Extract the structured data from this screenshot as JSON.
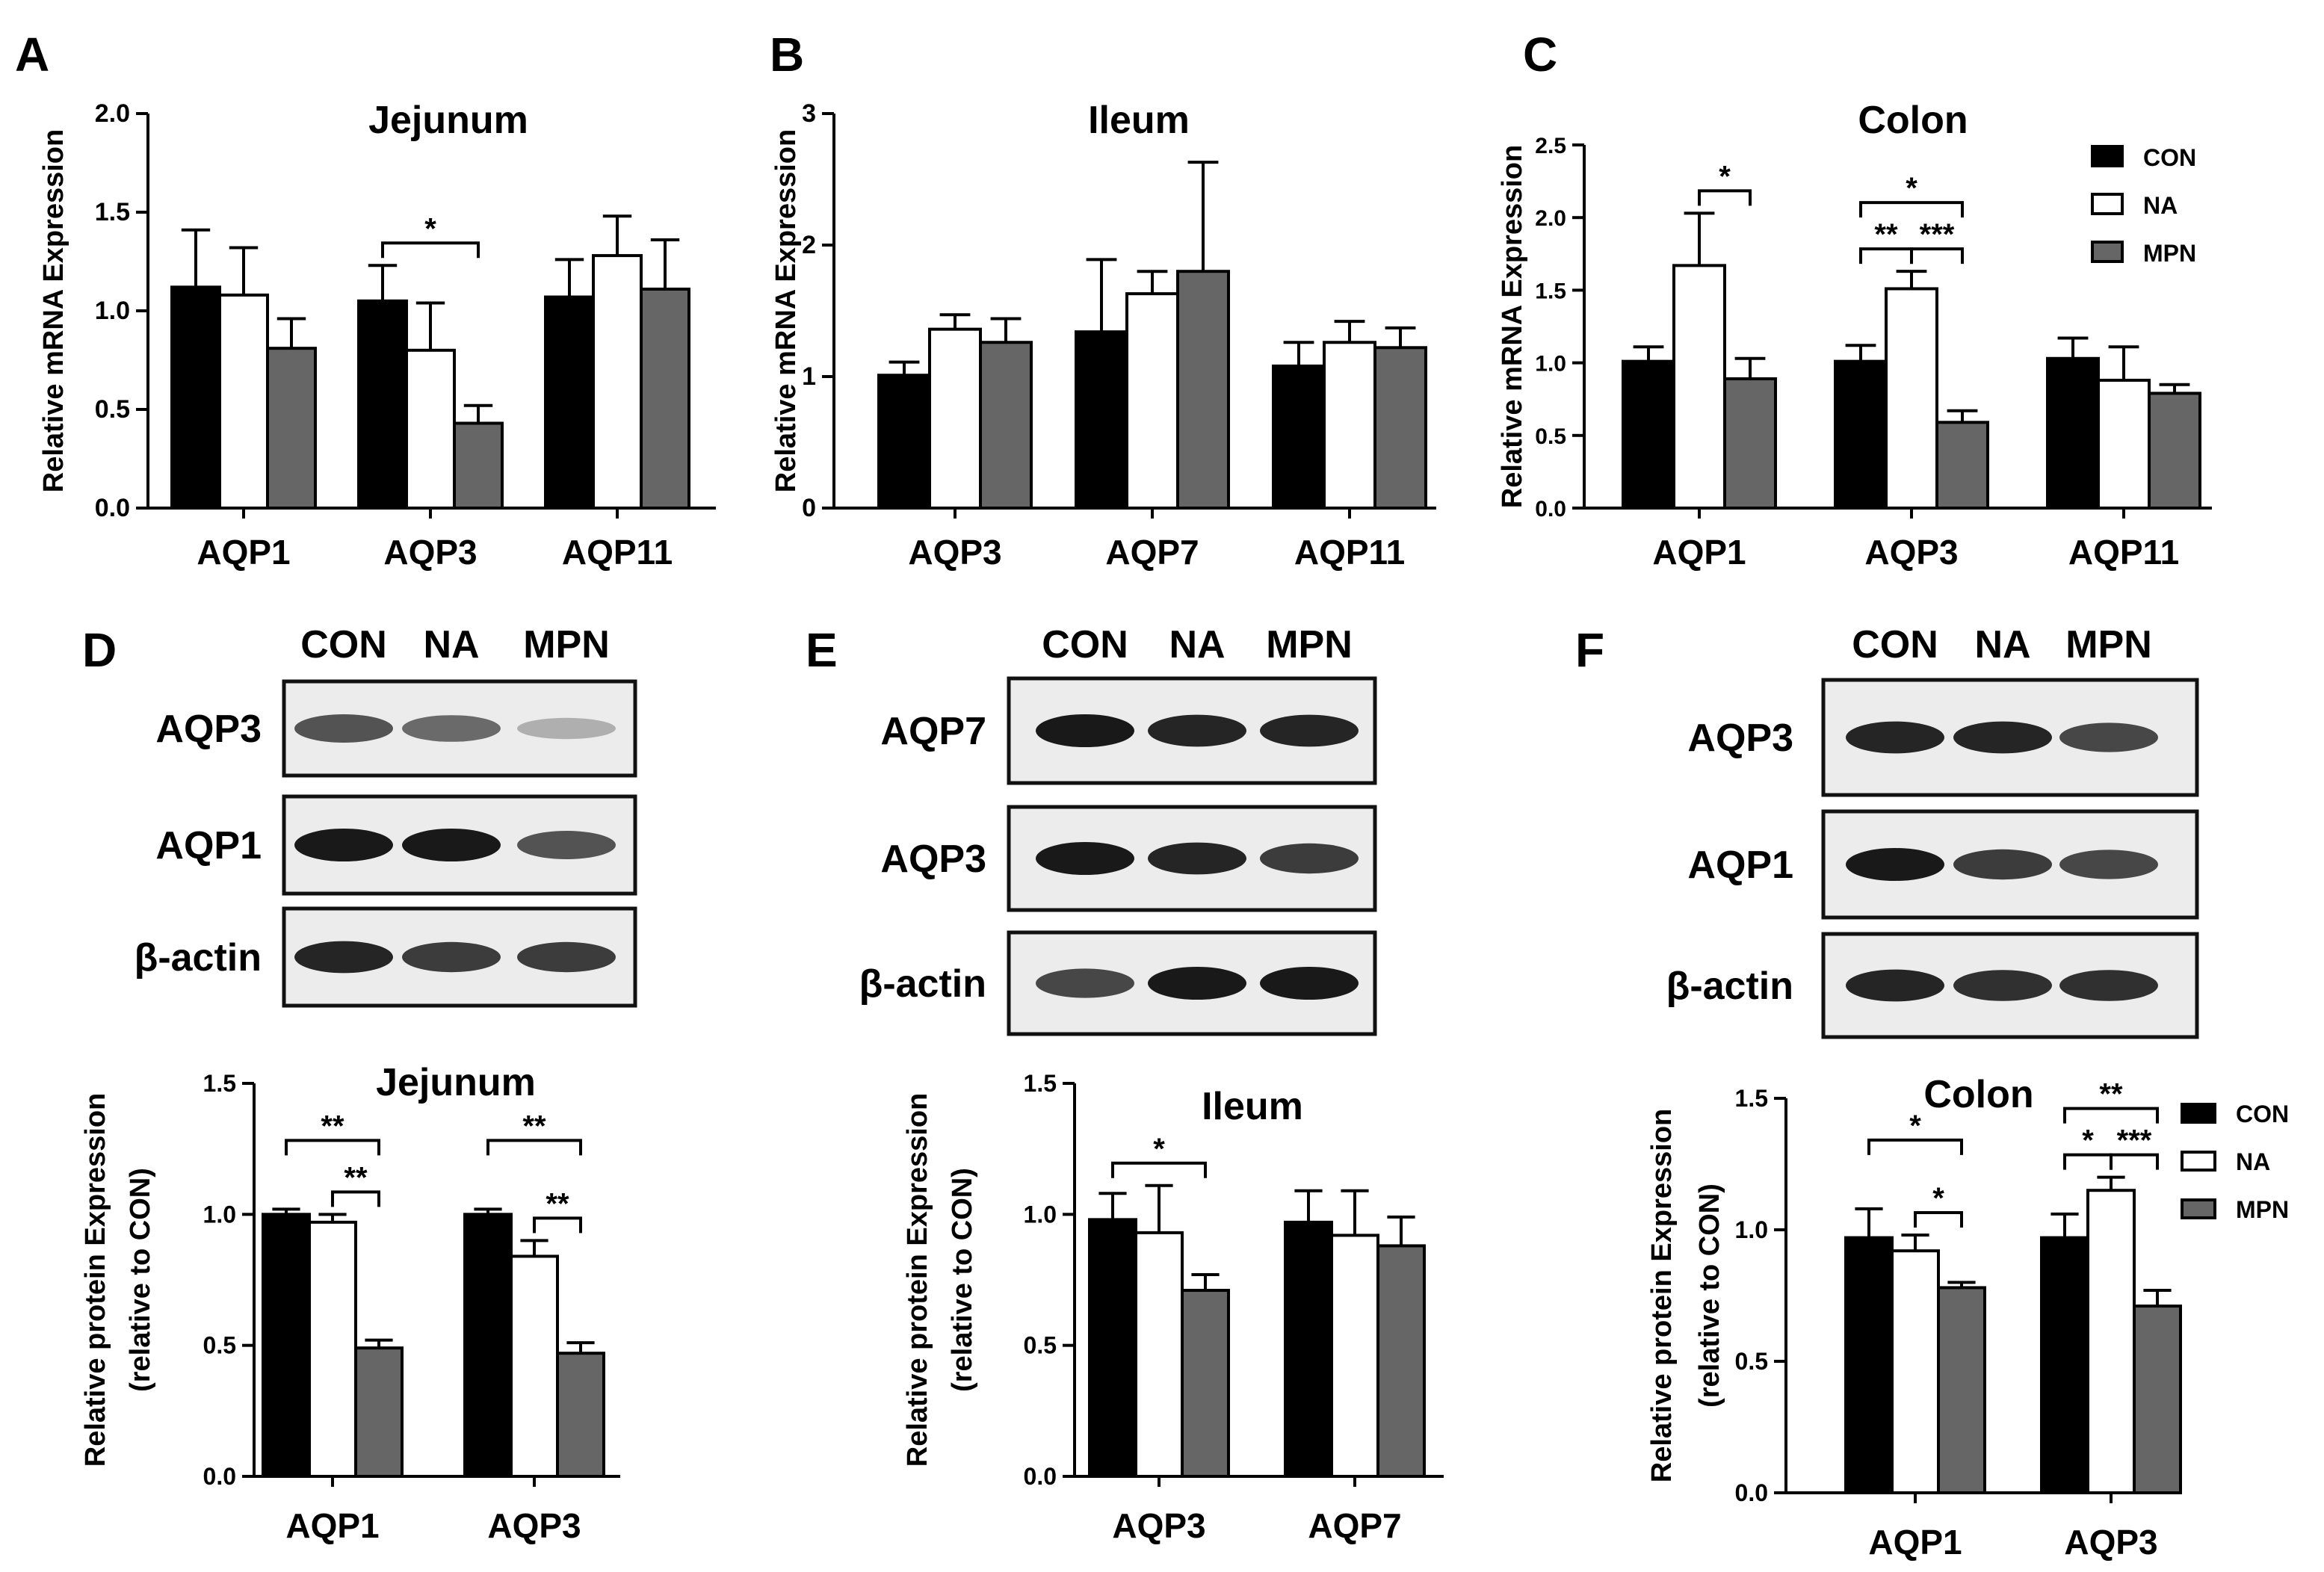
{
  "legend": {
    "groups": [
      "CON",
      "NA",
      "MPN"
    ]
  },
  "colors": {
    "CON": "#000000",
    "NA": "#ffffff",
    "MPN": "#666666",
    "axis": "#000000"
  },
  "panels": [
    {
      "letter": "A",
      "title": "Jejunum",
      "ylabel": "Relative mRNA Expression"
    },
    {
      "letter": "B",
      "title": "Ileum",
      "ylabel": "Relative mRNA Expression"
    },
    {
      "letter": "C",
      "title": "Colon",
      "ylabel": "Relative mRNA Expression"
    },
    {
      "letter": "D",
      "title": "Jejunum",
      "ylabel": [
        "Relative protein Expression",
        "(relative to CON)"
      ]
    },
    {
      "letter": "E",
      "title": "Ileum",
      "ylabel": [
        "Relative protein Expression",
        "(relative to CON)"
      ]
    },
    {
      "letter": "F",
      "title": "Colon",
      "ylabel": [
        "Relative protein Expression",
        "(relative to CON)"
      ]
    }
  ],
  "blots": [
    {
      "panel": "D",
      "lanes": [
        "CON",
        "NA",
        "MPN"
      ],
      "rows": [
        {
          "label": "AQP3",
          "intensity": [
            0.75,
            0.65,
            0.35
          ]
        },
        {
          "label": "AQP1",
          "intensity": [
            1.0,
            1.0,
            0.75
          ]
        },
        {
          "label": "β-actin",
          "intensity": [
            0.95,
            0.85,
            0.85
          ]
        }
      ]
    },
    {
      "panel": "E",
      "lanes": [
        "CON",
        "NA",
        "MPN"
      ],
      "rows": [
        {
          "label": "AQP7",
          "intensity": [
            1.0,
            0.95,
            0.95
          ]
        },
        {
          "label": "AQP3",
          "intensity": [
            1.0,
            0.95,
            0.85
          ]
        },
        {
          "label": "β-actin",
          "intensity": [
            0.8,
            1.0,
            1.0
          ]
        }
      ]
    },
    {
      "panel": "F",
      "lanes": [
        "CON",
        "NA",
        "MPN"
      ],
      "rows": [
        {
          "label": "AQP3",
          "intensity": [
            0.95,
            0.95,
            0.8
          ]
        },
        {
          "label": "AQP1",
          "intensity": [
            1.0,
            0.85,
            0.8
          ]
        },
        {
          "label": "β-actin",
          "intensity": [
            0.95,
            0.9,
            0.9
          ]
        }
      ]
    }
  ],
  "chart_data": [
    {
      "panel": "A",
      "type": "bar",
      "title": "Jejunum",
      "ylabel": "Relative mRNA Expression",
      "categories": [
        "AQP1",
        "AQP3",
        "AQP11"
      ],
      "ylim": [
        0,
        2.0
      ],
      "yticks": [
        "0.0",
        "0.5",
        "1.0",
        "1.5",
        "2.0"
      ],
      "series": [
        {
          "name": "CON",
          "values": [
            1.12,
            1.05,
            1.07
          ],
          "errors": [
            0.29,
            0.18,
            0.19
          ]
        },
        {
          "name": "NA",
          "values": [
            1.08,
            0.8,
            1.28
          ],
          "errors": [
            0.24,
            0.24,
            0.2
          ]
        },
        {
          "name": "MPN",
          "values": [
            0.81,
            0.43,
            1.11
          ],
          "errors": [
            0.15,
            0.09,
            0.25
          ]
        }
      ],
      "significance": [
        {
          "cat": 1,
          "from": 0,
          "to": 2,
          "label": "*",
          "level": 0
        }
      ]
    },
    {
      "panel": "B",
      "type": "bar",
      "title": "Ileum",
      "ylabel": "Relative mRNA Expression",
      "categories": [
        "AQP3",
        "AQP7",
        "AQP11"
      ],
      "ylim": [
        0,
        3
      ],
      "yticks": [
        "0",
        "1",
        "2",
        "3"
      ],
      "series": [
        {
          "name": "CON",
          "values": [
            1.01,
            1.34,
            1.08
          ],
          "errors": [
            0.1,
            0.55,
            0.18
          ]
        },
        {
          "name": "NA",
          "values": [
            1.36,
            1.63,
            1.26
          ],
          "errors": [
            0.11,
            0.17,
            0.16
          ]
        },
        {
          "name": "MPN",
          "values": [
            1.26,
            1.8,
            1.22
          ],
          "errors": [
            0.18,
            0.83,
            0.15
          ]
        }
      ],
      "significance": []
    },
    {
      "panel": "C",
      "type": "bar",
      "title": "Colon",
      "ylabel": "Relative mRNA Expression",
      "categories": [
        "AQP1",
        "AQP3",
        "AQP11"
      ],
      "ylim": [
        0,
        2.5
      ],
      "yticks": [
        "0.0",
        "0.5",
        "1.0",
        "1.5",
        "2.0",
        "2.5"
      ],
      "series": [
        {
          "name": "CON",
          "values": [
            1.01,
            1.01,
            1.03
          ],
          "errors": [
            0.1,
            0.11,
            0.14
          ]
        },
        {
          "name": "NA",
          "values": [
            1.67,
            1.51,
            0.88
          ],
          "errors": [
            0.36,
            0.12,
            0.23
          ]
        },
        {
          "name": "MPN",
          "values": [
            0.89,
            0.59,
            0.79
          ],
          "errors": [
            0.14,
            0.08,
            0.06
          ]
        }
      ],
      "legend": "top-right",
      "significance": [
        {
          "cat": 0,
          "from": 1,
          "to": 2,
          "label": "*",
          "level": 0
        },
        {
          "cat": 1,
          "from": 0,
          "to": 1,
          "label": "**",
          "level": 0
        },
        {
          "cat": 1,
          "from": 1,
          "to": 2,
          "label": "***",
          "level": 0
        },
        {
          "cat": 1,
          "from": 0,
          "to": 2,
          "label": "*",
          "level": 1
        }
      ]
    },
    {
      "panel": "D",
      "type": "bar",
      "title": "Jejunum",
      "ylabel": [
        "Relative protein Expression",
        "(relative to CON)"
      ],
      "categories": [
        "AQP1",
        "AQP3"
      ],
      "ylim": [
        0,
        1.5
      ],
      "yticks": [
        "0.0",
        "0.5",
        "1.0",
        "1.5"
      ],
      "series": [
        {
          "name": "CON",
          "values": [
            1.0,
            1.0
          ],
          "errors": [
            0.02,
            0.02
          ]
        },
        {
          "name": "NA",
          "values": [
            0.97,
            0.84
          ],
          "errors": [
            0.03,
            0.06
          ]
        },
        {
          "name": "MPN",
          "values": [
            0.49,
            0.47
          ],
          "errors": [
            0.03,
            0.04
          ]
        }
      ],
      "significance": [
        {
          "cat": 0,
          "from": 1,
          "to": 2,
          "label": "**",
          "level": 0
        },
        {
          "cat": 0,
          "from": 0,
          "to": 2,
          "label": "**",
          "level": 1
        },
        {
          "cat": 1,
          "from": 1,
          "to": 2,
          "label": "**",
          "level": 0
        },
        {
          "cat": 1,
          "from": 0,
          "to": 2,
          "label": "**",
          "level": 1
        }
      ]
    },
    {
      "panel": "E",
      "type": "bar",
      "title": "Ileum",
      "ylabel": [
        "Relative protein Expression",
        "(relative to CON)"
      ],
      "categories": [
        "AQP3",
        "AQP7"
      ],
      "ylim": [
        0,
        1.5
      ],
      "yticks": [
        "0.0",
        "0.5",
        "1.0",
        "1.5"
      ],
      "series": [
        {
          "name": "CON",
          "values": [
            0.98,
            0.97
          ],
          "errors": [
            0.1,
            0.12
          ]
        },
        {
          "name": "NA",
          "values": [
            0.93,
            0.92
          ],
          "errors": [
            0.18,
            0.17
          ]
        },
        {
          "name": "MPN",
          "values": [
            0.71,
            0.88
          ],
          "errors": [
            0.06,
            0.11
          ]
        }
      ],
      "significance": [
        {
          "cat": 0,
          "from": 0,
          "to": 2,
          "label": "*",
          "level": 0
        }
      ]
    },
    {
      "panel": "F",
      "type": "bar",
      "title": "Colon",
      "ylabel": [
        "Relative protein Expression",
        "(relative to CON)"
      ],
      "categories": [
        "AQP1",
        "AQP3"
      ],
      "ylim": [
        0,
        1.5
      ],
      "yticks": [
        "0.0",
        "0.5",
        "1.0",
        "1.5"
      ],
      "series": [
        {
          "name": "CON",
          "values": [
            0.97,
            0.97
          ],
          "errors": [
            0.11,
            0.09
          ]
        },
        {
          "name": "NA",
          "values": [
            0.92,
            1.15
          ],
          "errors": [
            0.06,
            0.05
          ]
        },
        {
          "name": "MPN",
          "values": [
            0.78,
            0.71
          ],
          "errors": [
            0.02,
            0.06
          ]
        }
      ],
      "legend": "top-right",
      "significance": [
        {
          "cat": 0,
          "from": 1,
          "to": 2,
          "label": "*",
          "level": 0
        },
        {
          "cat": 0,
          "from": 0,
          "to": 2,
          "label": "*",
          "level": 1
        },
        {
          "cat": 1,
          "from": 0,
          "to": 1,
          "label": "*",
          "level": 0
        },
        {
          "cat": 1,
          "from": 1,
          "to": 2,
          "label": "***",
          "level": 0
        },
        {
          "cat": 1,
          "from": 0,
          "to": 2,
          "label": "**",
          "level": 1
        }
      ]
    }
  ]
}
